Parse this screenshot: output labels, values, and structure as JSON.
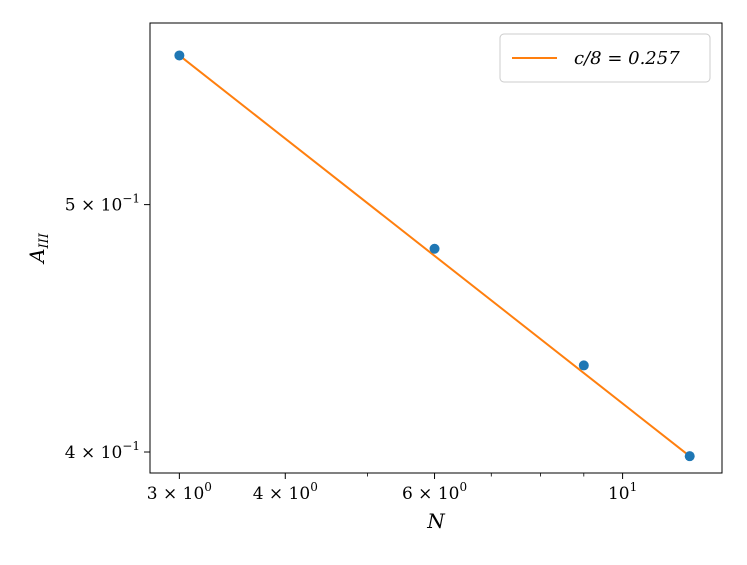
{
  "chart_data": {
    "type": "line",
    "title": "",
    "xlabel": "N",
    "ylabel": "A_{III}",
    "xscale": "log",
    "yscale": "log",
    "xlim": [
      2.77,
      13.1
    ],
    "ylim": [
      0.3925,
      0.589
    ],
    "grid": false,
    "legend_position": "top-right",
    "x_ticks": [
      {
        "value": 3,
        "label": "3 × 10⁰"
      },
      {
        "value": 4,
        "label": "4 × 10⁰"
      },
      {
        "value": 6,
        "label": "6 × 10⁰"
      },
      {
        "value": 10,
        "label": "10¹"
      }
    ],
    "x_minor_ticks": [
      5,
      7,
      8,
      9
    ],
    "y_ticks": [
      {
        "value": 0.4,
        "label": "4 × 10⁻¹"
      },
      {
        "value": 0.5,
        "label": "5 × 10⁻¹"
      }
    ],
    "series": [
      {
        "name": "",
        "kind": "scatter",
        "color": "#1f77b4",
        "x": [
          3,
          6,
          9,
          12
        ],
        "y": [
          0.572,
          0.4805,
          0.4325,
          0.3985
        ]
      },
      {
        "name": "c/8 = 0.257",
        "kind": "line",
        "color": "#ff7f0e",
        "x": [
          3,
          12
        ],
        "y": [
          0.572,
          0.3985
        ]
      }
    ]
  }
}
